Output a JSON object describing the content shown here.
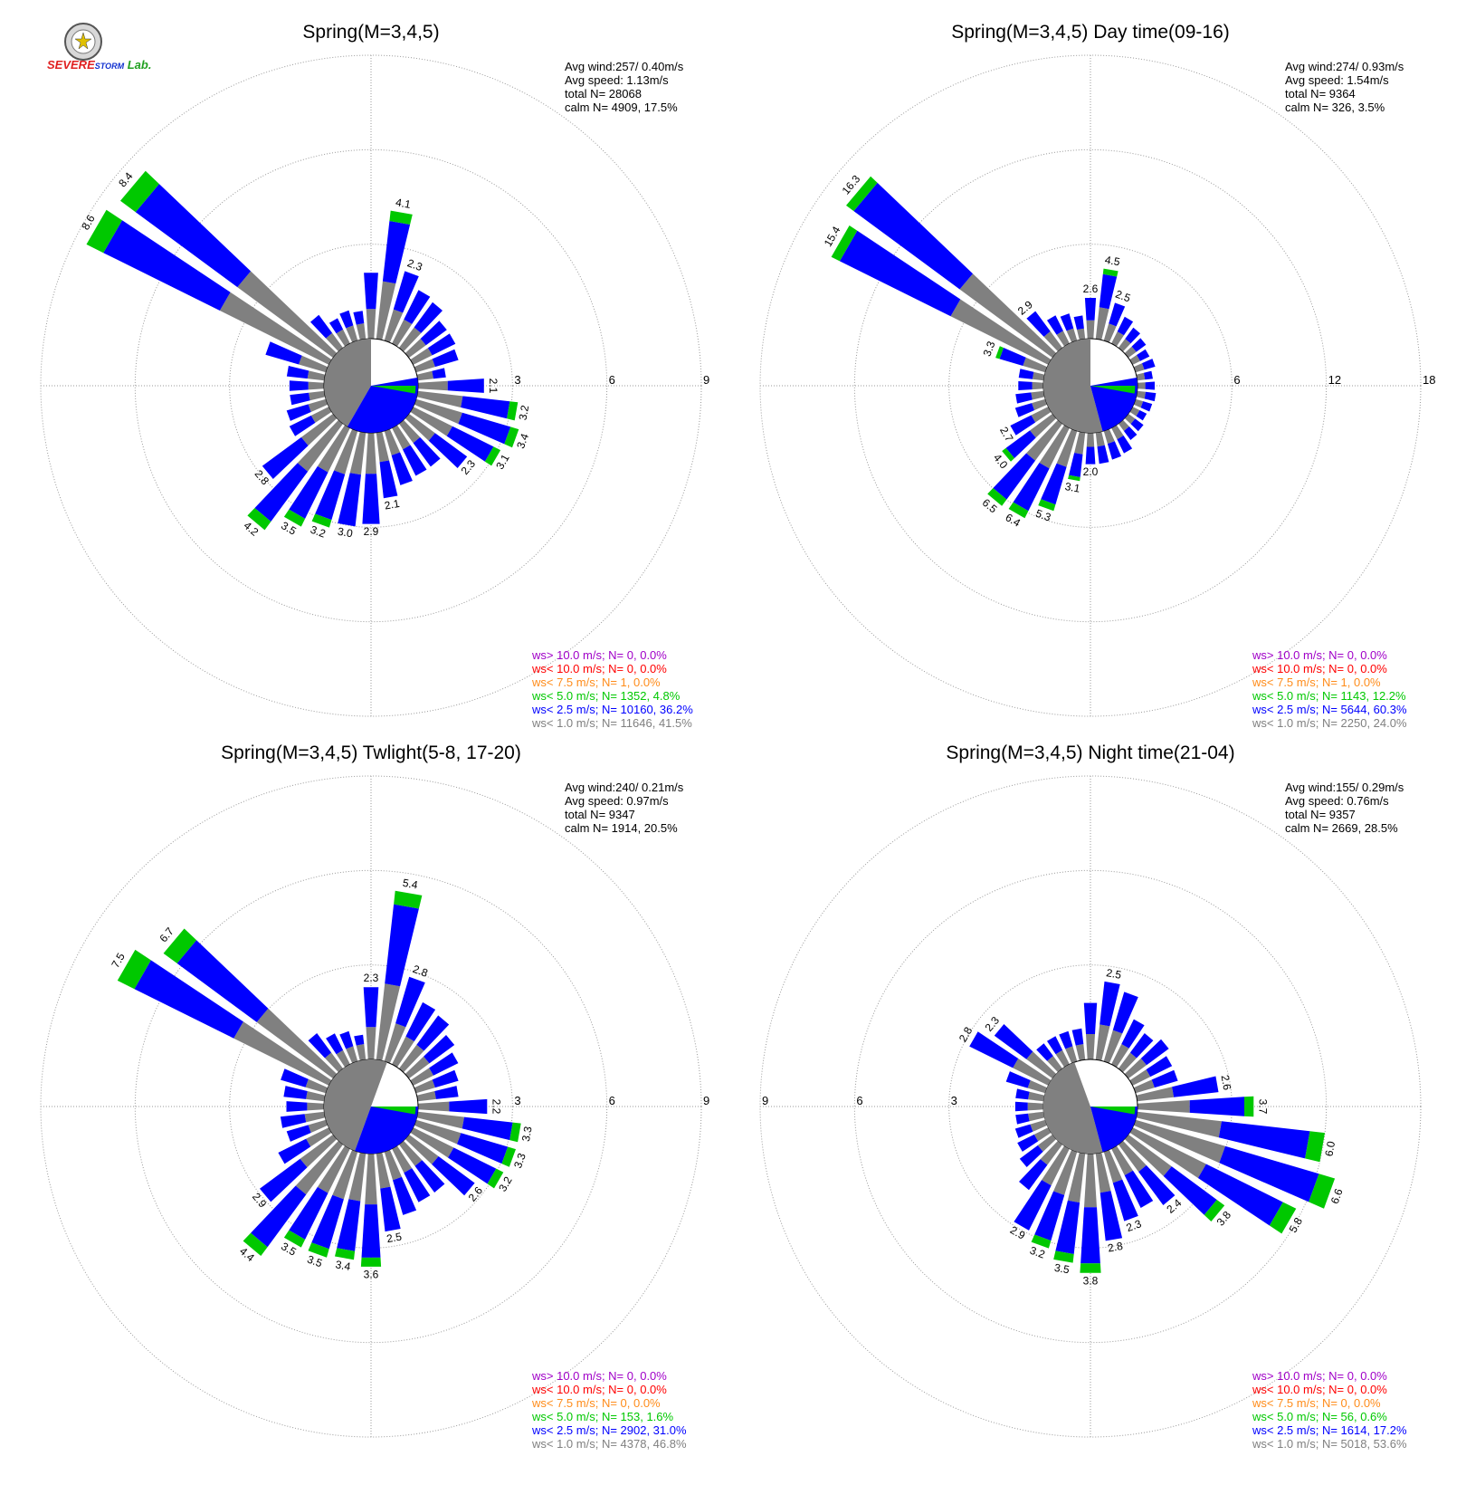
{
  "logo": {
    "text_severe": "SEVERE",
    "text_storm": "STORM",
    "text_lab": "Lab."
  },
  "colors": {
    "calm_fill": "#808080",
    "gray": "#808080",
    "blue": "#0000ff",
    "green": "#00c800",
    "orange": "#ff8c1a",
    "red": "#ff0000",
    "purple": "#a000c8",
    "grid": "#9a9a9a"
  },
  "chart_data": [
    {
      "type": "wind-rose",
      "title": "Spring(M=3,4,5)",
      "rings": [
        3,
        6,
        9
      ],
      "ring_labels": [
        "3",
        "6",
        "9"
      ],
      "rmax": 9,
      "ring_label_side": "right",
      "stats": [
        "Avg wind:257/ 0.40m/s",
        "Avg speed: 1.13m/s",
        "total N=      28068",
        "calm N=   4909,  17.5%"
      ],
      "calm": {
        "start_deg": 210,
        "end_deg": 360,
        "inner_start_deg": 80,
        "inner_end_deg": 210
      },
      "directions": [
        0,
        10,
        20,
        30,
        40,
        50,
        60,
        70,
        80,
        90,
        100,
        110,
        120,
        130,
        140,
        150,
        160,
        170,
        180,
        190,
        200,
        210,
        220,
        230,
        240,
        250,
        260,
        270,
        280,
        290,
        300,
        310,
        320,
        330,
        340,
        350
      ],
      "totals": [
        2.1,
        4.1,
        2.3,
        1.9,
        1.8,
        1.5,
        1.5,
        1.4,
        0.9,
        2.1,
        3.2,
        3.4,
        3.1,
        2.3,
        1.7,
        1.7,
        1.8,
        2.1,
        2.9,
        3.0,
        3.2,
        3.5,
        4.2,
        2.8,
        1.4,
        1.3,
        1.1,
        1.1,
        1.2,
        2.0,
        8.6,
        8.4,
        1.3,
        0.9,
        1.0,
        0.9
      ],
      "labels": {
        "10": "4.1",
        "20": "2.3",
        "90": "2.1",
        "100": "3.2",
        "110": "3.4",
        "120": "3.1",
        "130": "2.3",
        "170": "2.1",
        "180": "2.9",
        "190": "3.0",
        "200": "3.2",
        "210": "3.5",
        "220": "4.2",
        "230": "2.8",
        "300": "8.6",
        "310": "8.4"
      },
      "legend": [
        {
          "text": "ws> 10.0 m/s; N=      0,  0.0%",
          "color": "#a000c8"
        },
        {
          "text": "ws< 10.0 m/s; N=      0,  0.0%",
          "color": "#ff0000"
        },
        {
          "text": "ws<  7.5 m/s; N=      1,  0.0%",
          "color": "#ff8c1a"
        },
        {
          "text": "ws<  5.0 m/s; N=  1352,  4.8%",
          "color": "#00c800"
        },
        {
          "text": "ws<  2.5 m/s; N= 10160, 36.2%",
          "color": "#0000ff"
        },
        {
          "text": "ws<  1.0 m/s; N= 11646, 41.5%",
          "color": "#808080"
        }
      ]
    },
    {
      "type": "wind-rose",
      "title": "Spring(M=3,4,5) Day time(09-16)",
      "rings": [
        6,
        12,
        18
      ],
      "ring_labels": [
        "6",
        "12",
        "18"
      ],
      "rmax": 18,
      "ring_label_side": "right",
      "stats": [
        "Avg wind:274/ 0.93m/s",
        "Avg speed: 1.54m/s",
        "total N=       9364",
        "calm N=    326,   3.5%"
      ],
      "calm": {
        "start_deg": 165,
        "end_deg": 360,
        "inner_start_deg": 80,
        "inner_end_deg": 165
      },
      "directions": [
        0,
        10,
        20,
        30,
        40,
        50,
        60,
        70,
        80,
        90,
        100,
        110,
        120,
        130,
        140,
        150,
        160,
        170,
        180,
        190,
        200,
        210,
        220,
        230,
        240,
        250,
        260,
        270,
        280,
        290,
        300,
        310,
        320,
        330,
        340,
        350
      ],
      "totals": [
        2.6,
        4.5,
        2.5,
        1.9,
        1.6,
        1.4,
        1.2,
        1.3,
        1.0,
        1.1,
        1.2,
        1.1,
        1.0,
        1.2,
        1.3,
        1.8,
        1.9,
        2.0,
        2.0,
        3.1,
        5.3,
        6.4,
        6.5,
        4.0,
        2.7,
        2.0,
        1.8,
        1.6,
        1.6,
        3.3,
        15.4,
        16.3,
        2.9,
        2.0,
        1.8,
        1.5
      ],
      "labels": {
        "0": "2.6",
        "10": "4.5",
        "20": "2.5",
        "180": "2.0",
        "190": "3.1",
        "200": "5.3",
        "210": "6.4",
        "220": "6.5",
        "230": "4.0",
        "240": "2.7",
        "290": "3.3",
        "300": "15.4",
        "310": "16.3",
        "320": "2.9"
      },
      "legend": [
        {
          "text": "ws> 10.0 m/s; N=      0,  0.0%",
          "color": "#a000c8"
        },
        {
          "text": "ws< 10.0 m/s; N=      0,  0.0%",
          "color": "#ff0000"
        },
        {
          "text": "ws<  7.5 m/s; N=      1,  0.0%",
          "color": "#ff8c1a"
        },
        {
          "text": "ws<  5.0 m/s; N=  1143, 12.2%",
          "color": "#00c800"
        },
        {
          "text": "ws<  2.5 m/s; N=  5644, 60.3%",
          "color": "#0000ff"
        },
        {
          "text": "ws<  1.0 m/s; N=  2250, 24.0%",
          "color": "#808080"
        }
      ]
    },
    {
      "type": "wind-rose",
      "title": "Spring(M=3,4,5) Twlight(5-8, 17-20)",
      "rings": [
        3,
        6,
        9
      ],
      "ring_labels": [
        "3",
        "6",
        "9"
      ],
      "rmax": 9,
      "ring_label_side": "right",
      "stats": [
        "Avg wind:240/ 0.21m/s",
        "Avg speed: 0.97m/s",
        "total N=       9347",
        "calm N=   1914,  20.5%"
      ],
      "calm": {
        "start_deg": 200,
        "end_deg": 380,
        "inner_start_deg": 90,
        "inner_end_deg": 200
      },
      "directions": [
        0,
        10,
        20,
        30,
        40,
        50,
        60,
        70,
        80,
        90,
        100,
        110,
        120,
        130,
        140,
        150,
        160,
        170,
        180,
        190,
        200,
        210,
        220,
        230,
        240,
        250,
        260,
        270,
        280,
        290,
        300,
        310,
        320,
        330,
        340,
        350
      ],
      "totals": [
        2.3,
        5.4,
        2.8,
        2.2,
        2.1,
        1.8,
        1.6,
        1.4,
        1.3,
        2.2,
        3.3,
        3.3,
        3.2,
        2.6,
        1.9,
        1.9,
        2.1,
        2.5,
        3.6,
        3.4,
        3.5,
        3.5,
        4.4,
        2.9,
        1.8,
        1.3,
        1.4,
        1.2,
        1.3,
        1.5,
        7.5,
        6.7,
        1.4,
        1.1,
        1.0,
        0.8
      ],
      "labels": {
        "0": "2.3",
        "10": "5.4",
        "20": "2.8",
        "90": "2.2",
        "100": "3.3",
        "110": "3.3",
        "120": "3.2",
        "130": "2.6",
        "170": "2.5",
        "180": "3.6",
        "190": "3.4",
        "200": "3.5",
        "210": "3.5",
        "220": "4.4",
        "230": "2.9",
        "300": "7.5",
        "310": "6.7"
      },
      "legend": [
        {
          "text": "ws> 10.0 m/s; N=      0,  0.0%",
          "color": "#a000c8"
        },
        {
          "text": "ws< 10.0 m/s; N=      0,  0.0%",
          "color": "#ff0000"
        },
        {
          "text": "ws<  7.5 m/s; N=      0,  0.0%",
          "color": "#ff8c1a"
        },
        {
          "text": "ws<  5.0 m/s; N=    153,  1.6%",
          "color": "#00c800"
        },
        {
          "text": "ws<  2.5 m/s; N=  2902, 31.0%",
          "color": "#0000ff"
        },
        {
          "text": "ws<  1.0 m/s; N=  4378, 46.8%",
          "color": "#808080"
        }
      ]
    },
    {
      "type": "wind-rose",
      "title": "Spring(M=3,4,5) Night time(21-04)",
      "rings": [
        3,
        6,
        9
      ],
      "ring_labels": [
        "3",
        "6",
        "9"
      ],
      "rmax": 9,
      "ring_label_side": "left",
      "stats": [
        "Avg wind:155/ 0.29m/s",
        "Avg speed: 0.76m/s",
        "total N=       9357",
        "calm N=   2669,  28.5%"
      ],
      "calm": {
        "start_deg": 165,
        "end_deg": 340,
        "inner_start_deg": 90,
        "inner_end_deg": 165
      },
      "directions": [
        0,
        10,
        20,
        30,
        40,
        50,
        60,
        70,
        80,
        90,
        100,
        110,
        120,
        130,
        140,
        150,
        160,
        170,
        180,
        190,
        200,
        210,
        220,
        230,
        240,
        250,
        260,
        270,
        280,
        290,
        300,
        310,
        320,
        330,
        340,
        350
      ],
      "totals": [
        1.8,
        2.5,
        2.3,
        1.6,
        1.4,
        1.6,
        1.4,
        1.4,
        2.6,
        3.7,
        6.0,
        6.6,
        5.8,
        3.8,
        2.4,
        2.1,
        2.3,
        2.8,
        3.8,
        3.5,
        3.2,
        2.9,
        1.8,
        1.3,
        1.1,
        1.0,
        0.9,
        0.9,
        0.9,
        1.3,
        2.8,
        2.3,
        1.0,
        1.0,
        1.0,
        1.0
      ],
      "labels": {
        "10": "2.5",
        "80": "2.6",
        "90": "3.7",
        "100": "6.0",
        "110": "6.6",
        "120": "5.8",
        "130": "3.8",
        "140": "2.4",
        "160": "2.3",
        "170": "2.8",
        "180": "3.8",
        "190": "3.5",
        "200": "3.2",
        "210": "2.9",
        "300": "2.8",
        "310": "2.3"
      },
      "legend": [
        {
          "text": "ws> 10.0 m/s; N=      0,  0.0%",
          "color": "#a000c8"
        },
        {
          "text": "ws< 10.0 m/s; N=      0,  0.0%",
          "color": "#ff0000"
        },
        {
          "text": "ws<  7.5 m/s; N=      0,  0.0%",
          "color": "#ff8c1a"
        },
        {
          "text": "ws<  5.0 m/s; N=     56,  0.6%",
          "color": "#00c800"
        },
        {
          "text": "ws<  2.5 m/s; N=  1614, 17.2%",
          "color": "#0000ff"
        },
        {
          "text": "ws<  1.0 m/s; N=  5018, 53.6%",
          "color": "#808080"
        }
      ]
    }
  ]
}
